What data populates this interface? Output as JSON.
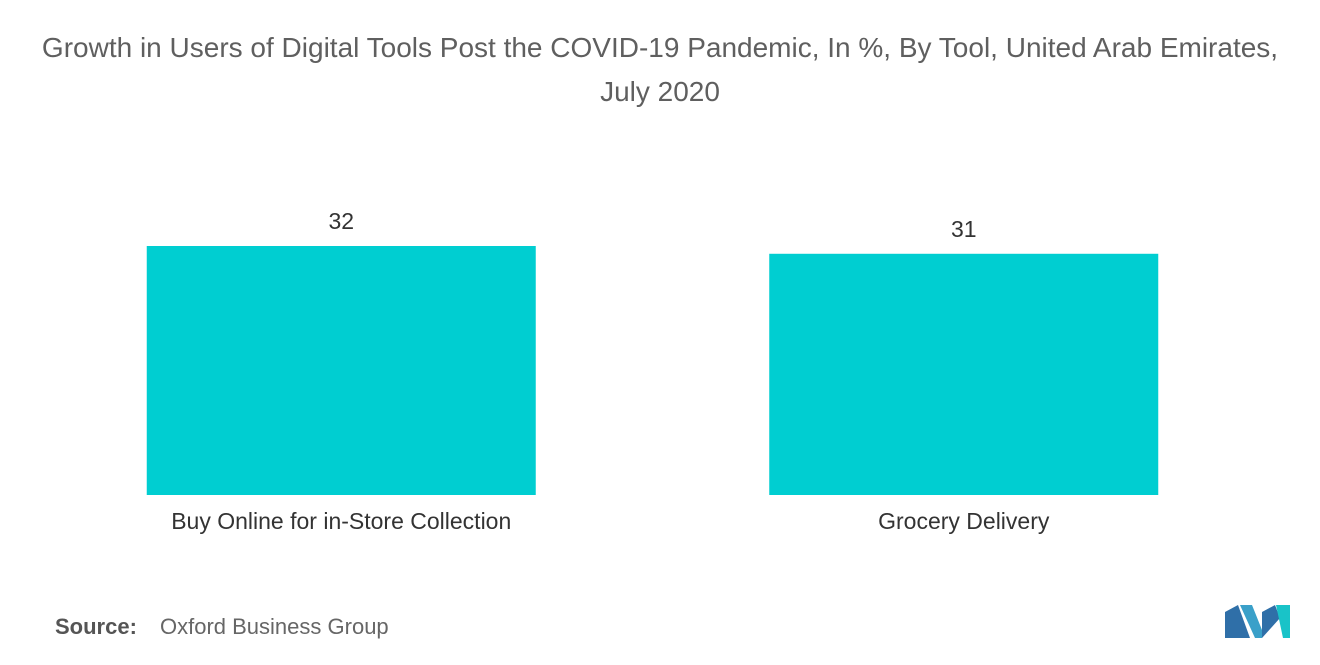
{
  "chart_data": {
    "type": "bar",
    "title": "Growth in Users of Digital Tools Post the COVID-19 Pandemic, In %, By Tool, United Arab Emirates, July 2020",
    "categories": [
      "Buy Online for in-Store Collection",
      "Grocery Delivery"
    ],
    "values": [
      32,
      31
    ],
    "color": "#00ced1",
    "source": {
      "label": "Source:",
      "text": "Oxford Business Group"
    }
  }
}
